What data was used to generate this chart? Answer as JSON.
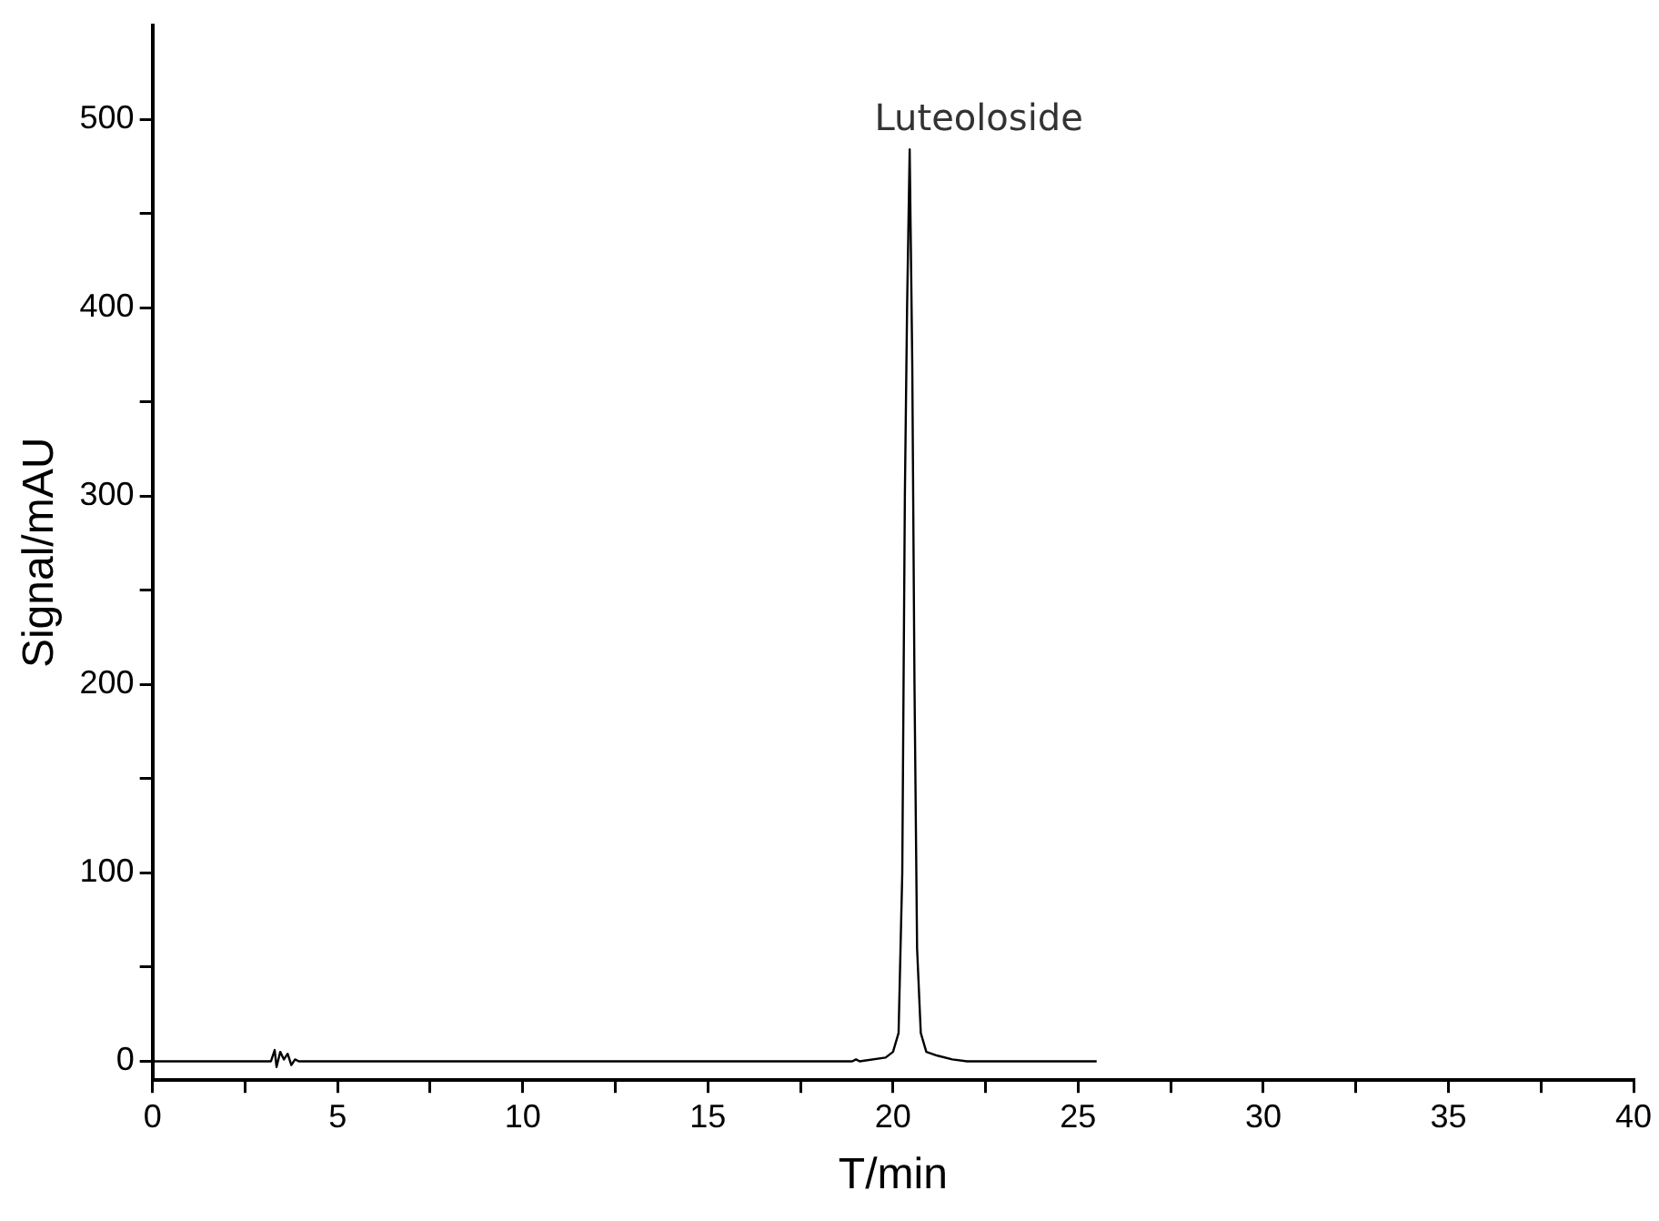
{
  "chart_data": {
    "type": "line",
    "xlabel": "T/min",
    "ylabel": "Signal/mAU",
    "x": [
      0,
      3.2,
      3.3,
      3.35,
      3.45,
      3.55,
      3.65,
      3.75,
      3.85,
      3.95,
      10,
      18.9,
      19.0,
      19.1,
      19.8,
      20.0,
      20.15,
      20.25,
      20.32,
      20.38,
      20.45,
      20.52,
      20.58,
      20.65,
      20.75,
      20.9,
      21.2,
      21.6,
      22.0,
      25.5
    ],
    "series": [
      {
        "color": "#000000",
        "values": [
          0,
          0,
          6,
          -3,
          5,
          1,
          4,
          -2,
          1,
          0,
          0,
          0,
          1,
          0,
          2,
          5,
          15,
          100,
          300,
          400,
          484,
          370,
          200,
          60,
          15,
          5,
          3,
          1,
          0,
          0
        ]
      }
    ],
    "xlim": [
      0,
      40
    ],
    "ylim": [
      -10,
      550
    ],
    "xticks": [
      0,
      {
        "value": 2.5,
        "label": null
      },
      5,
      {
        "value": 7.5,
        "label": null
      },
      10,
      {
        "value": 12.5,
        "label": null
      },
      15,
      {
        "value": 17.5,
        "label": null
      },
      20,
      {
        "value": 22.5,
        "label": null
      },
      25,
      {
        "value": 27.5,
        "label": null
      },
      30,
      {
        "value": 32.5,
        "label": null
      },
      35,
      {
        "value": 37.5,
        "label": null
      },
      40
    ],
    "yticks": [
      0,
      {
        "value": 50,
        "label": null
      },
      100,
      {
        "value": 150,
        "label": null
      },
      200,
      {
        "value": 250,
        "label": null
      },
      300,
      {
        "value": 350,
        "label": null
      },
      400,
      {
        "value": 450,
        "label": null
      },
      500
    ],
    "grid": false,
    "legend": false,
    "marker": "none",
    "line_style": "solid",
    "annotations": [
      {
        "text": "Luteoloside",
        "x": 20.45,
        "y": 484
      }
    ]
  }
}
